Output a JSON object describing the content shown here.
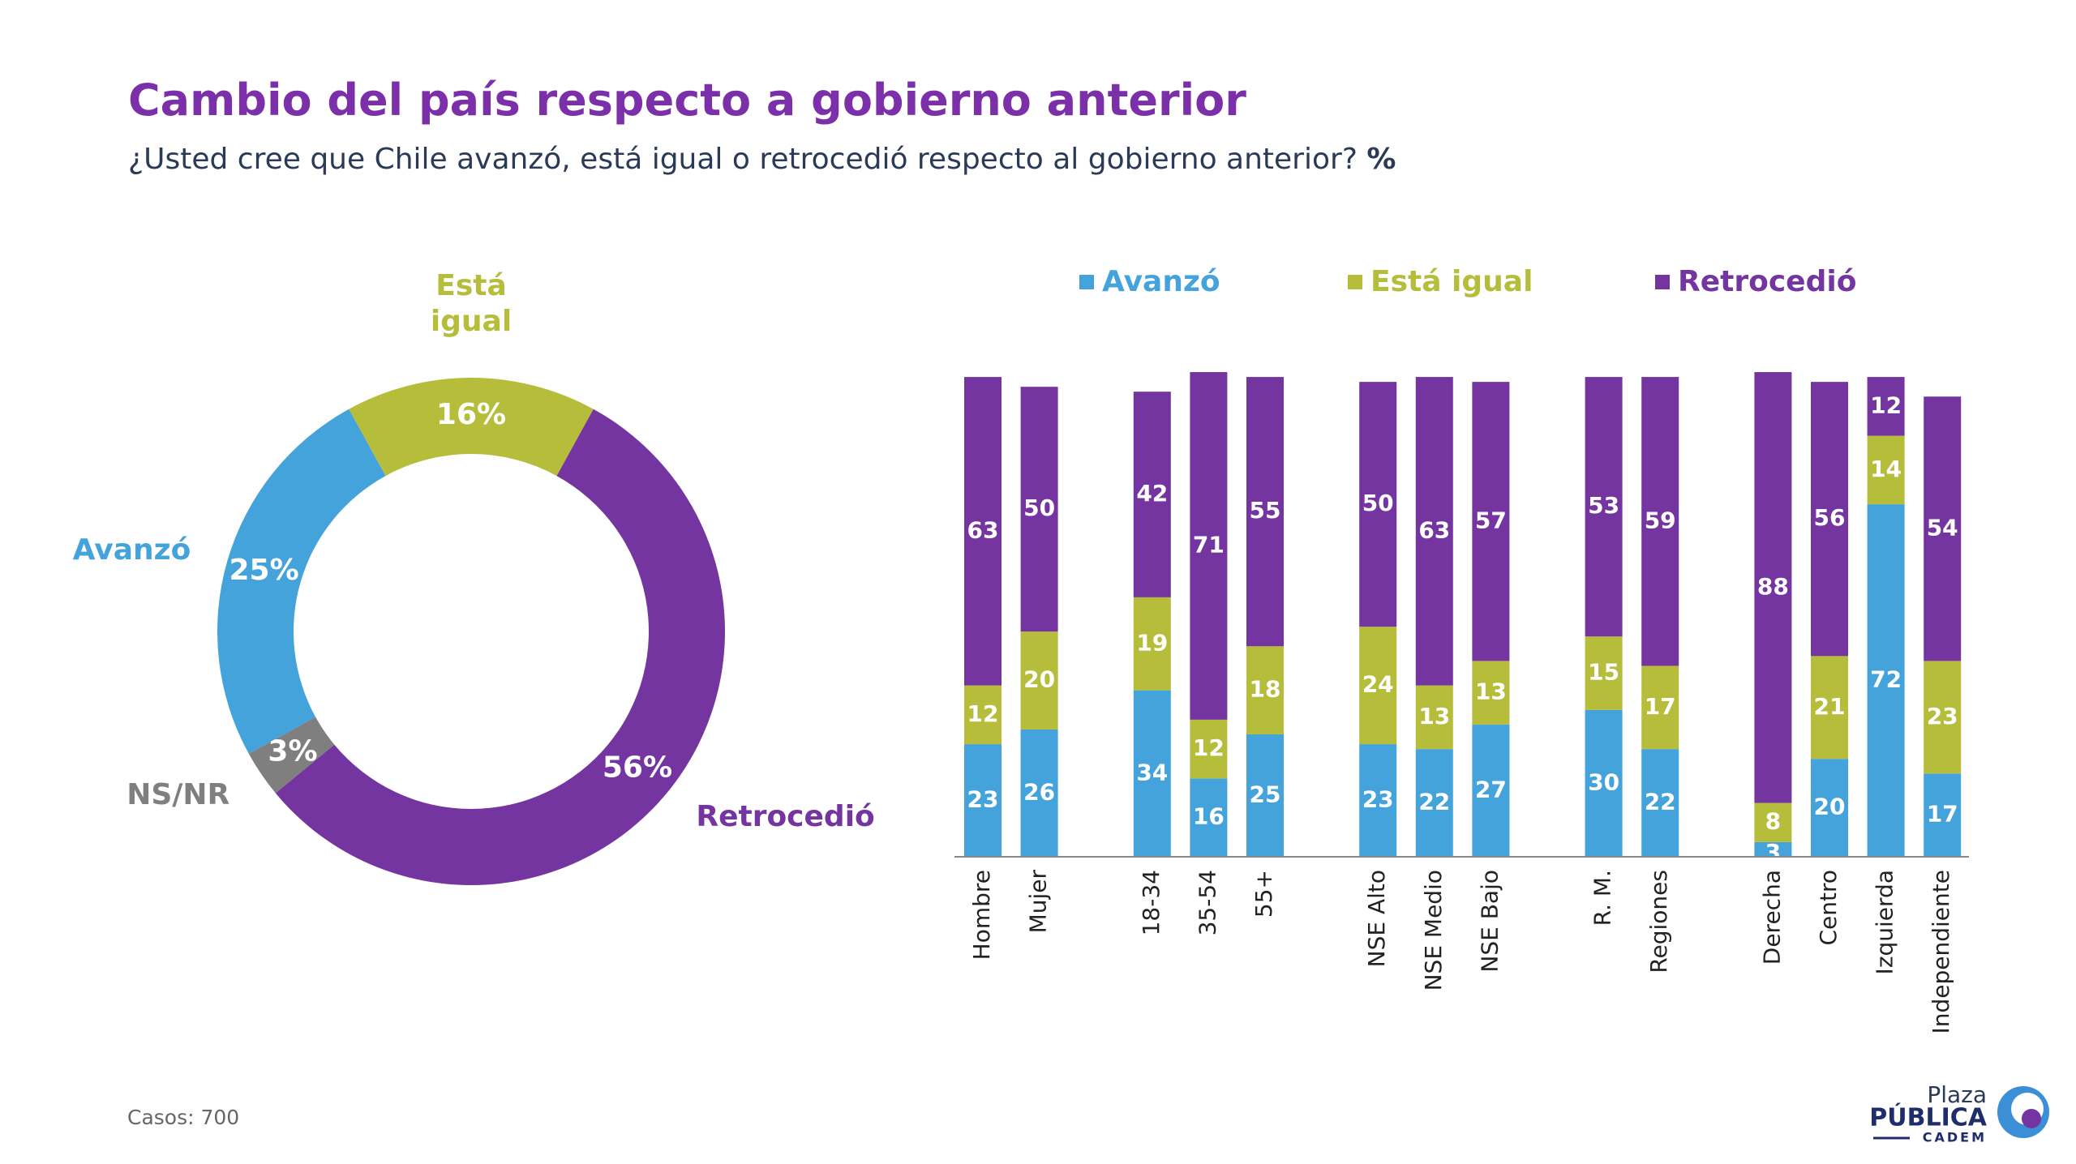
{
  "header": {
    "title": "Cambio del país respecto a gobierno anterior",
    "subtitle": "¿Usted cree que Chile avanzó, está igual o retrocedió respecto al gobierno anterior?",
    "subtitle_suffix": "%"
  },
  "chart_data": [
    {
      "type": "pie",
      "donut": true,
      "categories": [
        "Está igual",
        "Retrocedió",
        "NS/NR",
        "Avanzó"
      ],
      "values": [
        16,
        56,
        3,
        25
      ],
      "value_labels": [
        "16%",
        "56%",
        "3%",
        "25%"
      ],
      "colors": [
        "#b5bd3a",
        "#7535a0",
        "#7f7f7f",
        "#45a3dc"
      ]
    },
    {
      "type": "stacked_bar",
      "categories": [
        "Hombre",
        "Mujer",
        null,
        "18-34",
        "35-54",
        "55+",
        null,
        "NSE Alto",
        "NSE Medio",
        "NSE Bajo",
        null,
        "R. M.",
        "Regiones",
        null,
        "Derecha",
        "Centro",
        "Izquierda",
        "Independiente"
      ],
      "series": [
        {
          "name": "Avanzó",
          "color": "#45a3dc",
          "values": [
            23,
            26,
            null,
            34,
            16,
            25,
            null,
            23,
            22,
            27,
            null,
            30,
            22,
            null,
            3,
            20,
            72,
            17
          ]
        },
        {
          "name": "Está igual",
          "color": "#b5bd3a",
          "values": [
            12,
            20,
            null,
            19,
            12,
            18,
            null,
            24,
            13,
            13,
            null,
            15,
            17,
            null,
            8,
            21,
            14,
            23
          ]
        },
        {
          "name": "Retrocedió",
          "color": "#7535a0",
          "values": [
            63,
            50,
            null,
            42,
            71,
            55,
            null,
            50,
            63,
            57,
            null,
            53,
            59,
            null,
            88,
            56,
            12,
            54
          ]
        }
      ],
      "ylim": [
        0,
        100
      ],
      "legend": "top"
    }
  ],
  "footer": {
    "note": "Casos: 700"
  },
  "logo": {
    "line1": "Plaza",
    "line2": "PÚBLICA",
    "line3": "CADEM"
  }
}
